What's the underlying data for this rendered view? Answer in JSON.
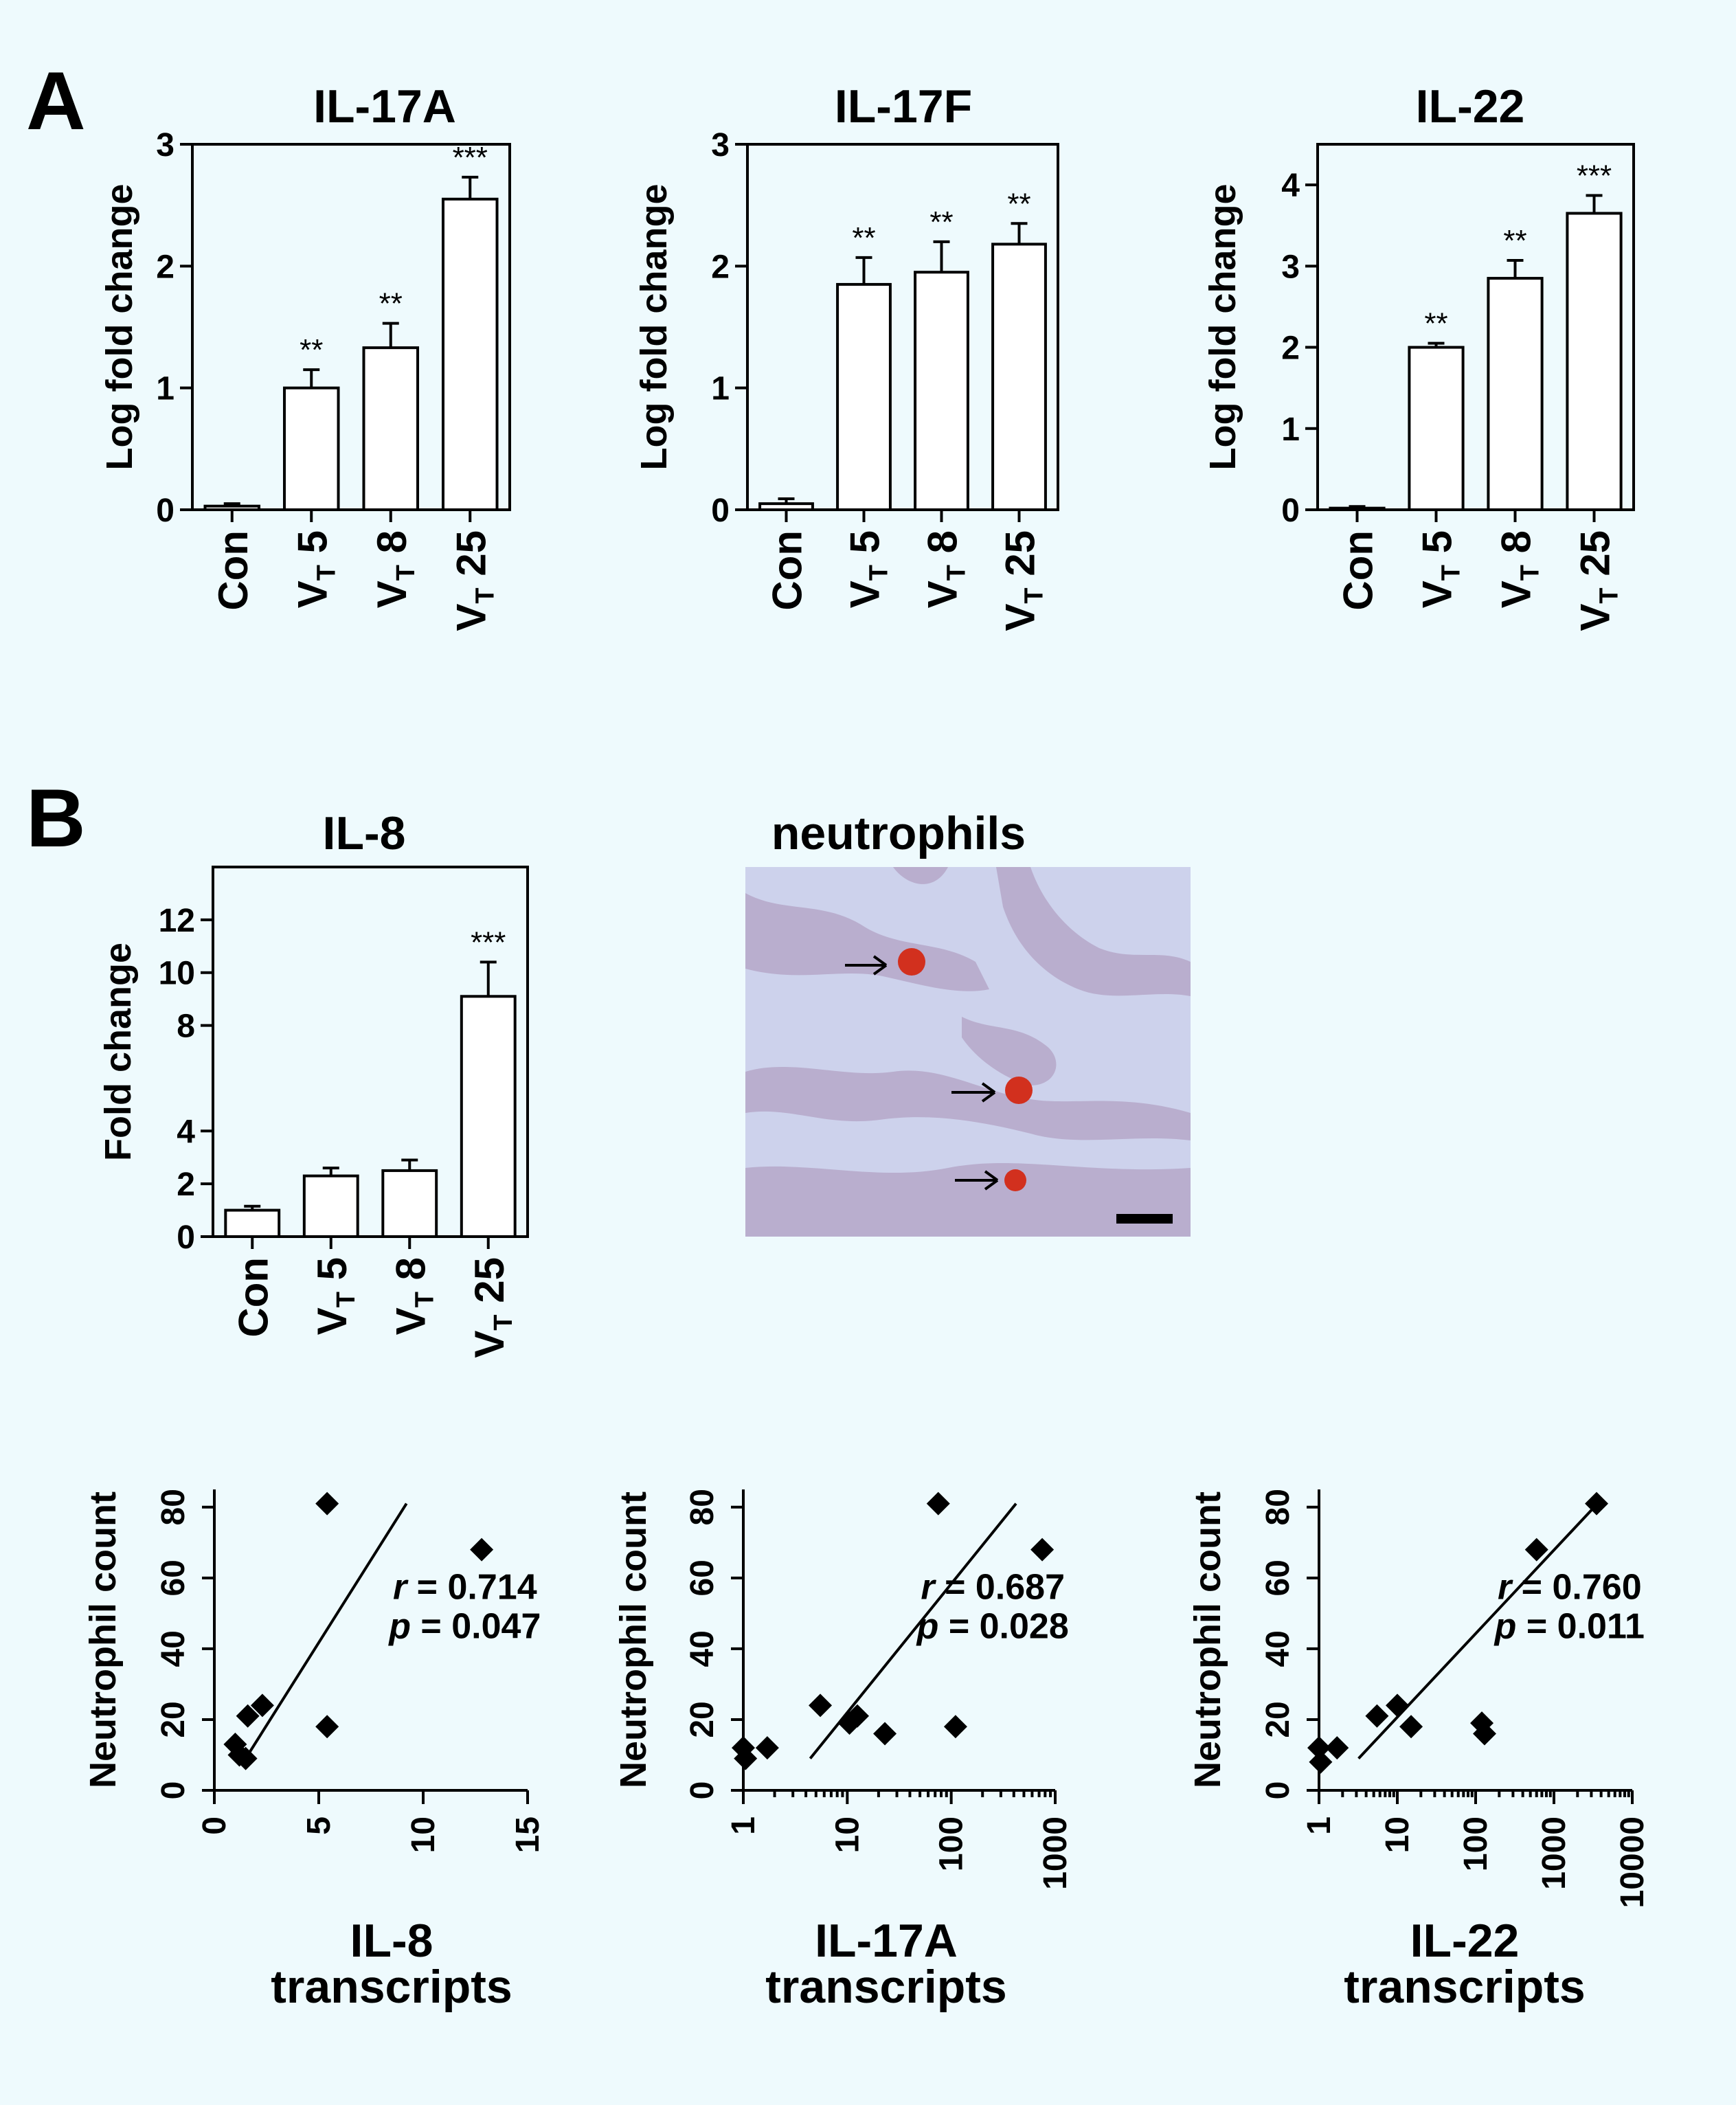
{
  "panel_labels": {
    "a": "A",
    "b": "B"
  },
  "category_prefix": "V",
  "category_subscript": "T",
  "micrograph": {
    "title": "neutrophils",
    "arrow_count": 3,
    "colors": {
      "background": "#cdd2ec",
      "tissue": "#a98fb6",
      "neutrophil_stain": "#d2301e"
    }
  },
  "colors": {
    "page_background": "#eefafd",
    "bars": "#ffffff",
    "ink": "#000000"
  },
  "chart_data": [
    {
      "id": "il17a",
      "type": "bar",
      "title": "IL-17A",
      "ylabel": "Log fold change",
      "categories": [
        "Con",
        "VT 5",
        "VT 8",
        "VT 25"
      ],
      "values": [
        0.03,
        1.0,
        1.33,
        2.55
      ],
      "errors": [
        0.02,
        0.15,
        0.2,
        0.18
      ],
      "significance": [
        "",
        "**",
        "**",
        "***"
      ],
      "ylim": [
        0,
        3
      ],
      "yticks": [
        0,
        1,
        2,
        3
      ]
    },
    {
      "id": "il17f",
      "type": "bar",
      "title": "IL-17F",
      "ylabel": "Log fold change",
      "categories": [
        "Con",
        "VT 5",
        "VT 8",
        "VT 25"
      ],
      "values": [
        0.05,
        1.85,
        1.95,
        2.18
      ],
      "errors": [
        0.04,
        0.22,
        0.25,
        0.17
      ],
      "significance": [
        "",
        "**",
        "**",
        "**"
      ],
      "ylim": [
        0,
        3
      ],
      "yticks": [
        0,
        1,
        2,
        3
      ]
    },
    {
      "id": "il22",
      "type": "bar",
      "title": "IL-22",
      "ylabel": "Log fold change",
      "categories": [
        "Con",
        "VT 5",
        "VT 8",
        "VT 25"
      ],
      "values": [
        0.02,
        2.0,
        2.85,
        3.65
      ],
      "errors": [
        0.02,
        0.05,
        0.22,
        0.22
      ],
      "significance": [
        "",
        "**",
        "**",
        "***"
      ],
      "ylim": [
        0,
        4.5
      ],
      "yticks": [
        0,
        1,
        2,
        3,
        4
      ]
    },
    {
      "id": "il8",
      "type": "bar",
      "title": "IL-8",
      "ylabel": "Fold change",
      "categories": [
        "Con",
        "VT 5",
        "VT 8",
        "VT 25"
      ],
      "values": [
        1.0,
        2.3,
        2.5,
        9.1
      ],
      "errors": [
        0.15,
        0.3,
        0.4,
        1.3
      ],
      "significance": [
        "",
        "",
        "",
        "***"
      ],
      "ylim": [
        0,
        14
      ],
      "yticks": [
        0,
        2,
        4,
        8,
        10,
        12
      ]
    },
    {
      "id": "scatter_il8",
      "type": "scatter",
      "ylabel": "Neutrophil count",
      "xlabel": "IL-8",
      "xlabel2": "transcripts",
      "xscale": "linear",
      "xlim": [
        0,
        15
      ],
      "ylim": [
        0,
        85
      ],
      "xticks": [
        0,
        5,
        10,
        15
      ],
      "yticks": [
        0,
        20,
        40,
        60,
        80
      ],
      "points": [
        [
          1.0,
          13
        ],
        [
          1.2,
          10
        ],
        [
          1.5,
          9
        ],
        [
          1.6,
          21
        ],
        [
          2.3,
          24
        ],
        [
          5.4,
          81
        ],
        [
          12.8,
          68
        ],
        [
          5.4,
          18
        ]
      ],
      "fit": [
        [
          1.5,
          9
        ],
        [
          9.2,
          81
        ]
      ],
      "r_label": "r",
      "r_value": "= 0.714",
      "p_label": "p",
      "p_value": "= 0.047"
    },
    {
      "id": "scatter_il17a",
      "type": "scatter",
      "ylabel": "Neutrophil count",
      "xlabel": "IL-17A",
      "xlabel2": "transcripts",
      "xscale": "log",
      "xlim": [
        1,
        1000
      ],
      "ylim": [
        0,
        85
      ],
      "xticks": [
        1,
        10,
        100,
        1000
      ],
      "yticks": [
        0,
        20,
        40,
        60,
        80
      ],
      "points": [
        [
          1.0,
          12
        ],
        [
          1.05,
          9
        ],
        [
          1.7,
          12
        ],
        [
          5.5,
          24
        ],
        [
          10.5,
          19
        ],
        [
          12.5,
          21
        ],
        [
          23,
          16
        ],
        [
          75,
          81
        ],
        [
          110,
          18
        ],
        [
          750,
          68
        ]
      ],
      "fit": [
        [
          4.4,
          9
        ],
        [
          420,
          81
        ]
      ],
      "r_label": "r",
      "r_value": "= 0.687",
      "p_label": "p",
      "p_value": "= 0.028"
    },
    {
      "id": "scatter_il22",
      "type": "scatter",
      "ylabel": "Neutrophil count",
      "xlabel": "IL-22",
      "xlabel2": "transcripts",
      "xscale": "log",
      "xlim": [
        1,
        10000
      ],
      "ylim": [
        0,
        85
      ],
      "xticks": [
        1,
        10,
        100,
        1000,
        10000
      ],
      "yticks": [
        0,
        20,
        40,
        60,
        80
      ],
      "points": [
        [
          1.0,
          12
        ],
        [
          1.05,
          8
        ],
        [
          1.7,
          12
        ],
        [
          5.5,
          21
        ],
        [
          10,
          24
        ],
        [
          15,
          18
        ],
        [
          120,
          19
        ],
        [
          130,
          16
        ],
        [
          600,
          68
        ],
        [
          3500,
          81
        ]
      ],
      "fit": [
        [
          3.2,
          9
        ],
        [
          3600,
          81
        ]
      ],
      "r_label": "r",
      "r_value": "= 0.760",
      "p_label": "p",
      "p_value": "= 0.011"
    }
  ]
}
